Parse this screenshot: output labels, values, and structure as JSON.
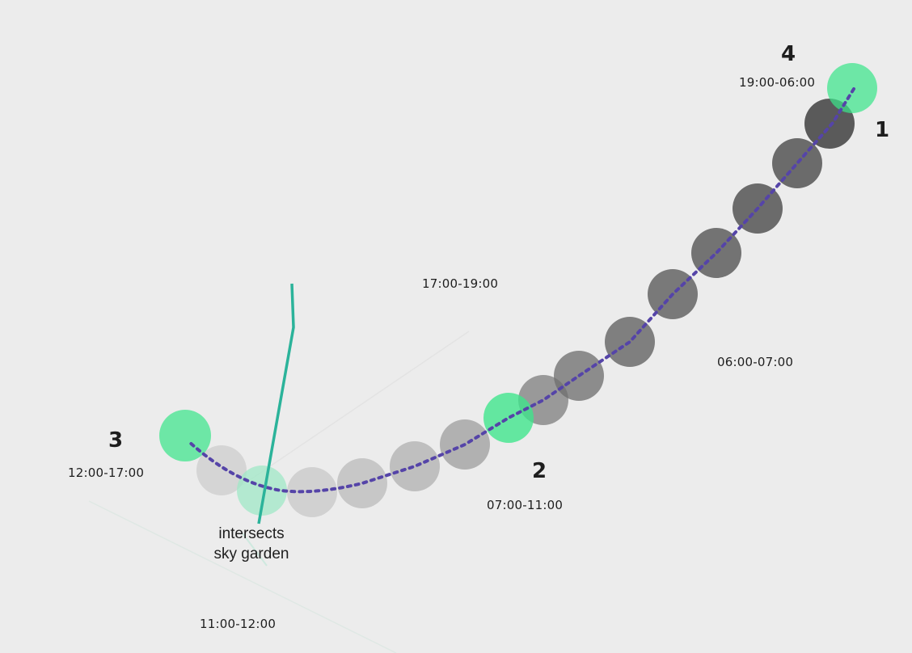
{
  "markers": [
    {
      "number": "1",
      "time": "",
      "color": "#9be3b8"
    },
    {
      "number": "2",
      "time": "07:00-11:00"
    },
    {
      "number": "3",
      "time": "12:00-17:00"
    },
    {
      "number": "4",
      "time": "19:00-06:00"
    }
  ],
  "time_labels": {
    "t_1700_1900": "17:00-19:00",
    "t_0600_0700": "06:00-07:00",
    "t_1100_1200": "11:00-12:00"
  },
  "annotation": {
    "line1": "intersects",
    "line2": "sky garden"
  },
  "colors": {
    "background": "#ececec",
    "highlight_circle": "#3ce58a",
    "path": "#5544a8",
    "sky_garden_line": "#2bb39a",
    "circle_dark": "#555555",
    "circle_light": "#c8c8c8"
  }
}
